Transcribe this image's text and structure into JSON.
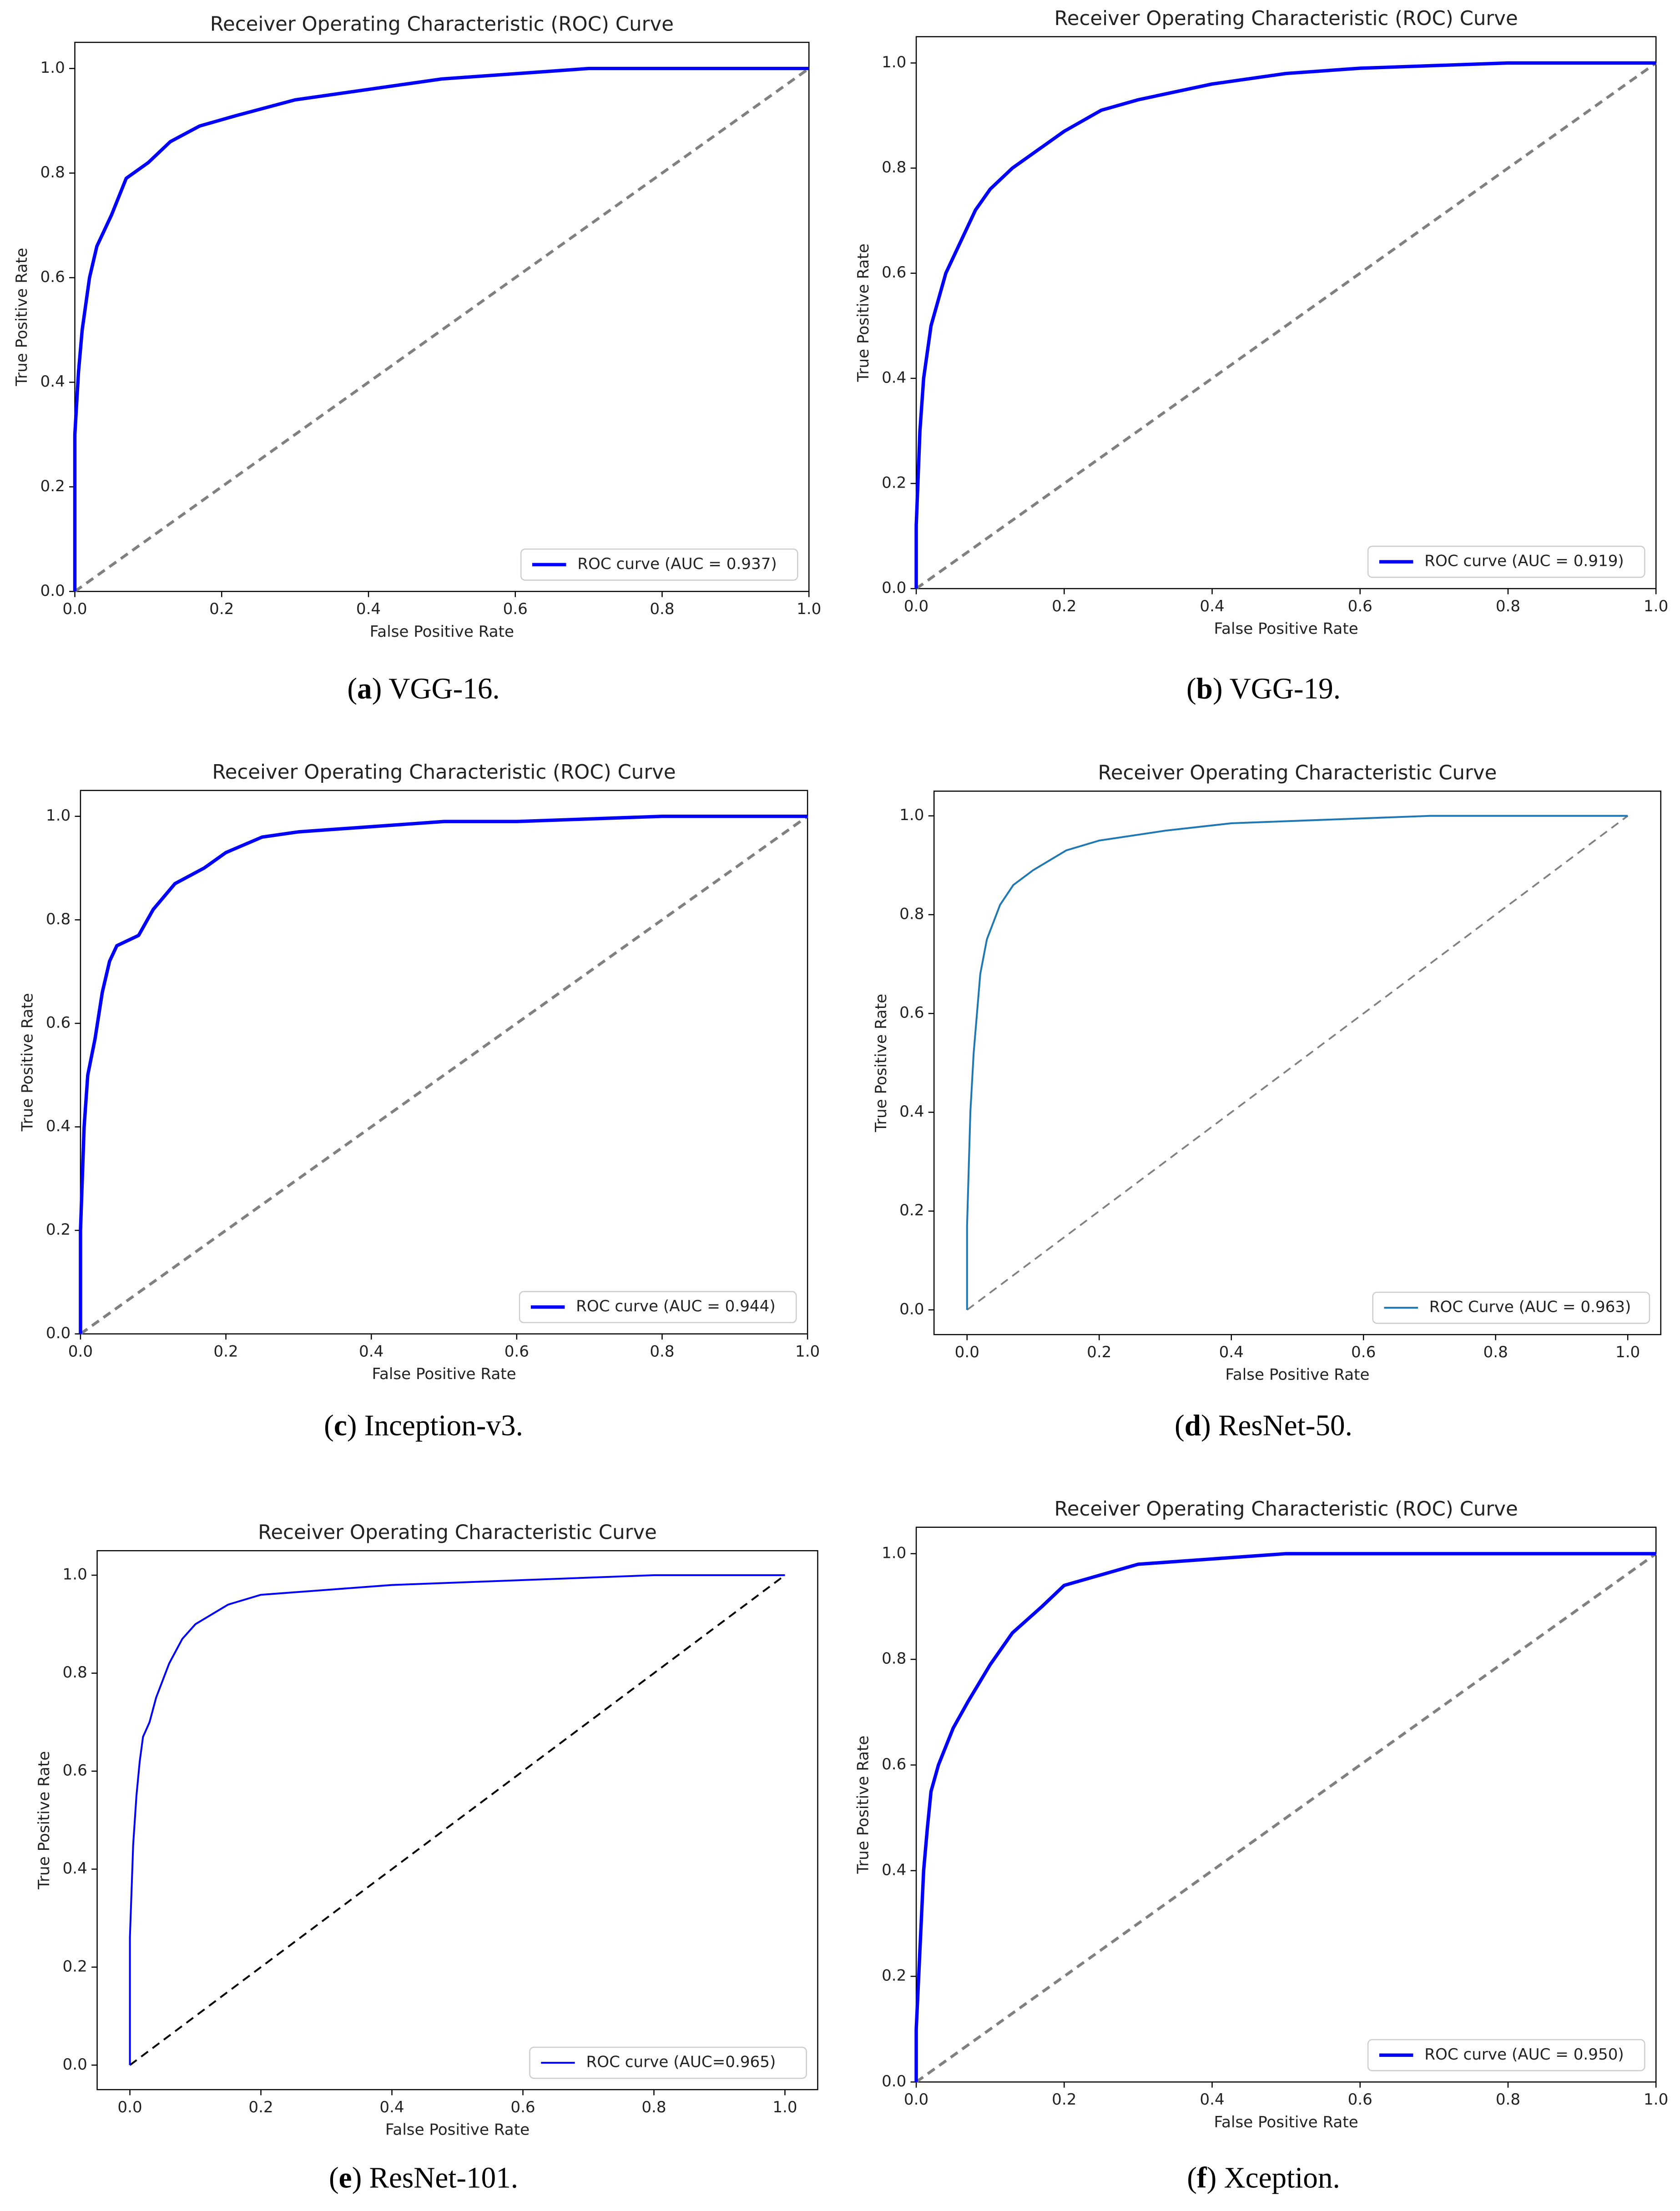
{
  "chart_data": [
    {
      "type": "line",
      "title": "Receiver Operating Characteristic (ROC) Curve",
      "x_label": "False Positive Rate",
      "y_label": "True Positive Rate",
      "caption": [
        "(",
        "a",
        ") VGG-16."
      ],
      "xlim": [
        0,
        1
      ],
      "ylim": [
        0,
        1.05
      ],
      "xticks": [
        {
          "value": 0,
          "label": "0.0"
        },
        0.2,
        0.4,
        0.6,
        0.8,
        {
          "value": 1,
          "label": "1.0"
        }
      ],
      "yticks": [
        {
          "value": 0,
          "label": "0.0"
        },
        0.2,
        0.4,
        0.6,
        0.8,
        {
          "value": 1,
          "label": "1.0"
        }
      ],
      "legend": "lower right",
      "series": [
        {
          "name": "ROC curve (AUC = 0.937)",
          "color": "blue",
          "x": [
            0,
            0,
            0.005,
            0.01,
            0.02,
            0.03,
            0.05,
            0.07,
            0.1,
            0.13,
            0.17,
            0.22,
            0.3,
            0.4,
            0.5,
            0.6,
            0.7,
            1
          ],
          "values": [
            0,
            0.3,
            0.42,
            0.5,
            0.6,
            0.66,
            0.72,
            0.79,
            0.82,
            0.86,
            0.89,
            0.91,
            0.94,
            0.96,
            0.98,
            0.99,
            1,
            1
          ]
        }
      ],
      "reference_line": {
        "x": [
          0,
          1
        ],
        "values": [
          0,
          1
        ],
        "color": "gray"
      }
    },
    {
      "type": "line",
      "title": "Receiver Operating Characteristic (ROC) Curve",
      "x_label": "False Positive Rate",
      "y_label": "True Positive Rate",
      "caption": [
        "(",
        "b",
        ") VGG-19."
      ],
      "xlim": [
        0,
        1
      ],
      "ylim": [
        0,
        1.05
      ],
      "xticks": [
        {
          "value": 0,
          "label": "0.0"
        },
        0.2,
        0.4,
        0.6,
        0.8,
        {
          "value": 1,
          "label": "1.0"
        }
      ],
      "yticks": [
        {
          "value": 0,
          "label": "0.0"
        },
        0.2,
        0.4,
        0.6,
        0.8,
        {
          "value": 1,
          "label": "1.0"
        }
      ],
      "legend": "lower right",
      "series": [
        {
          "name": "ROC curve (AUC = 0.919)",
          "color": "blue",
          "x": [
            0,
            0,
            0.005,
            0.01,
            0.02,
            0.04,
            0.06,
            0.08,
            0.1,
            0.13,
            0.17,
            0.2,
            0.25,
            0.3,
            0.4,
            0.5,
            0.6,
            0.8,
            1
          ],
          "values": [
            0,
            0.12,
            0.3,
            0.4,
            0.5,
            0.6,
            0.66,
            0.72,
            0.76,
            0.8,
            0.84,
            0.87,
            0.91,
            0.93,
            0.96,
            0.98,
            0.99,
            1,
            1
          ]
        }
      ],
      "reference_line": {
        "x": [
          0,
          1
        ],
        "values": [
          0,
          1
        ],
        "color": "gray"
      }
    },
    {
      "type": "line",
      "title": "Receiver Operating Characteristic (ROC) Curve",
      "x_label": "False Positive Rate",
      "y_label": "True Positive Rate",
      "caption": [
        "(",
        "c",
        ") Inception-v3."
      ],
      "xlim": [
        0,
        1
      ],
      "ylim": [
        0,
        1.05
      ],
      "xticks": [
        {
          "value": 0,
          "label": "0.0"
        },
        0.2,
        0.4,
        0.6,
        0.8,
        {
          "value": 1,
          "label": "1.0"
        }
      ],
      "yticks": [
        {
          "value": 0,
          "label": "0.0"
        },
        0.2,
        0.4,
        0.6,
        0.8,
        {
          "value": 1,
          "label": "1.0"
        }
      ],
      "legend": "lower right",
      "series": [
        {
          "name": "ROC curve (AUC = 0.944)",
          "color": "blue",
          "x": [
            0,
            0,
            0.005,
            0.01,
            0.02,
            0.03,
            0.04,
            0.05,
            0.08,
            0.1,
            0.13,
            0.17,
            0.2,
            0.25,
            0.3,
            0.4,
            0.5,
            0.6,
            0.8,
            1
          ],
          "values": [
            0,
            0.2,
            0.4,
            0.5,
            0.57,
            0.66,
            0.72,
            0.75,
            0.77,
            0.82,
            0.87,
            0.9,
            0.93,
            0.96,
            0.97,
            0.98,
            0.99,
            0.99,
            1,
            1
          ]
        }
      ],
      "reference_line": {
        "x": [
          0,
          1
        ],
        "values": [
          0,
          1
        ],
        "color": "gray"
      }
    },
    {
      "type": "line",
      "title": "Receiver Operating Characteristic Curve",
      "x_label": "False Positive Rate",
      "y_label": "True Positive Rate",
      "caption": [
        "(",
        "d",
        ") ResNet-50."
      ],
      "xlim": [
        -0.05,
        1.05
      ],
      "ylim": [
        -0.05,
        1.05
      ],
      "xticks": [
        {
          "value": 0,
          "label": "0.0"
        },
        0.2,
        0.4,
        0.6,
        0.8,
        {
          "value": 1,
          "label": "1.0"
        }
      ],
      "yticks": [
        {
          "value": 0,
          "label": "0.0"
        },
        0.2,
        0.4,
        0.6,
        0.8,
        {
          "value": 1,
          "label": "1.0"
        }
      ],
      "legend": "lower right",
      "series": [
        {
          "name": "ROC Curve (AUC = 0.963)",
          "color": "#1f77b4",
          "x": [
            0,
            0,
            0.005,
            0.01,
            0.015,
            0.02,
            0.03,
            0.05,
            0.07,
            0.1,
            0.15,
            0.2,
            0.3,
            0.4,
            0.5,
            0.7,
            1
          ],
          "values": [
            0,
            0.17,
            0.4,
            0.52,
            0.6,
            0.68,
            0.75,
            0.82,
            0.86,
            0.89,
            0.93,
            0.95,
            0.97,
            0.985,
            0.99,
            1,
            1
          ]
        }
      ],
      "reference_line": {
        "x": [
          0,
          1
        ],
        "values": [
          0,
          1
        ],
        "color": "gray"
      }
    },
    {
      "type": "line",
      "title": "Receiver Operating Characteristic Curve",
      "x_label": "False Positive Rate",
      "y_label": "True Positive Rate",
      "caption": [
        "(",
        "e",
        ") ResNet-101."
      ],
      "xlim": [
        -0.05,
        1.05
      ],
      "ylim": [
        -0.05,
        1.05
      ],
      "xticks": [
        {
          "value": 0,
          "label": "0.0"
        },
        0.2,
        0.4,
        0.6,
        0.8,
        {
          "value": 1,
          "label": "1.0"
        }
      ],
      "yticks": [
        {
          "value": 0,
          "label": "0.0"
        },
        0.2,
        0.4,
        0.6,
        0.8,
        {
          "value": 1,
          "label": "1.0"
        }
      ],
      "legend": "lower right",
      "series": [
        {
          "name": "ROC curve (AUC=0.965)",
          "color": "blue",
          "x": [
            0,
            0,
            0.005,
            0.01,
            0.015,
            0.02,
            0.03,
            0.04,
            0.06,
            0.08,
            0.1,
            0.15,
            0.2,
            0.3,
            0.4,
            0.6,
            0.8,
            1
          ],
          "values": [
            0,
            0.26,
            0.45,
            0.55,
            0.62,
            0.67,
            0.7,
            0.75,
            0.82,
            0.87,
            0.9,
            0.94,
            0.96,
            0.97,
            0.98,
            0.99,
            1,
            1
          ]
        }
      ],
      "reference_line": {
        "x": [
          0,
          1
        ],
        "values": [
          0,
          1
        ],
        "color": "black"
      }
    },
    {
      "type": "line",
      "title": "Receiver Operating Characteristic (ROC) Curve",
      "x_label": "False Positive Rate",
      "y_label": "True Positive Rate",
      "caption": [
        "(",
        "f",
        ") Xception."
      ],
      "xlim": [
        0,
        1
      ],
      "ylim": [
        0,
        1.05
      ],
      "xticks": [
        {
          "value": 0,
          "label": "0.0"
        },
        0.2,
        0.4,
        0.6,
        0.8,
        {
          "value": 1,
          "label": "1.0"
        }
      ],
      "yticks": [
        {
          "value": 0,
          "label": "0.0"
        },
        0.2,
        0.4,
        0.6,
        0.8,
        {
          "value": 1,
          "label": "1.0"
        }
      ],
      "legend": "lower right",
      "series": [
        {
          "name": "ROC curve (AUC = 0.950)",
          "color": "blue",
          "x": [
            0,
            0,
            0.005,
            0.01,
            0.015,
            0.02,
            0.03,
            0.05,
            0.07,
            0.1,
            0.13,
            0.17,
            0.2,
            0.25,
            0.3,
            0.4,
            0.5,
            0.6,
            1
          ],
          "values": [
            0,
            0.1,
            0.25,
            0.4,
            0.48,
            0.55,
            0.6,
            0.67,
            0.72,
            0.79,
            0.85,
            0.9,
            0.94,
            0.96,
            0.98,
            0.99,
            1,
            1,
            1
          ]
        }
      ],
      "reference_line": {
        "x": [
          0,
          1
        ],
        "values": [
          0,
          1
        ],
        "color": "gray"
      }
    }
  ]
}
